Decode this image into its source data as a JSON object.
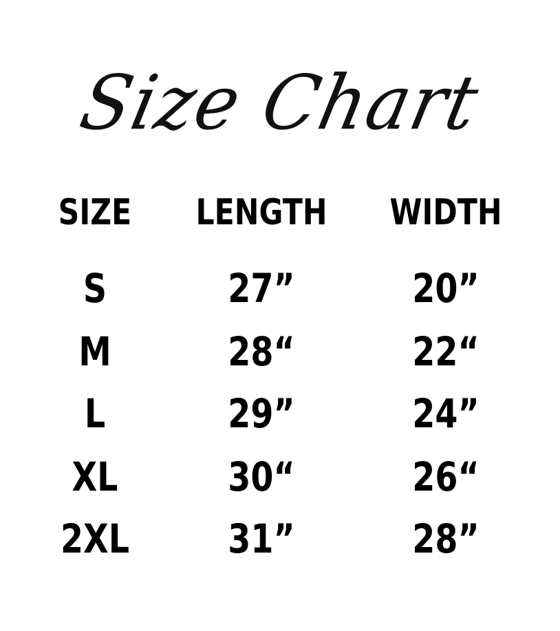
{
  "title": "Size Chart",
  "headers": [
    "SIZE",
    "LENGTH",
    "WIDTH"
  ],
  "rows": [
    [
      "S",
      "27”",
      "20”"
    ],
    [
      "M",
      "28“",
      "22“"
    ],
    [
      "L",
      "29”",
      "24”"
    ],
    [
      "XL",
      "30“",
      "26“"
    ],
    [
      "2XL",
      "31”",
      "28”"
    ]
  ],
  "colors": {
    "text": "#000000",
    "background": "#ffffff"
  }
}
